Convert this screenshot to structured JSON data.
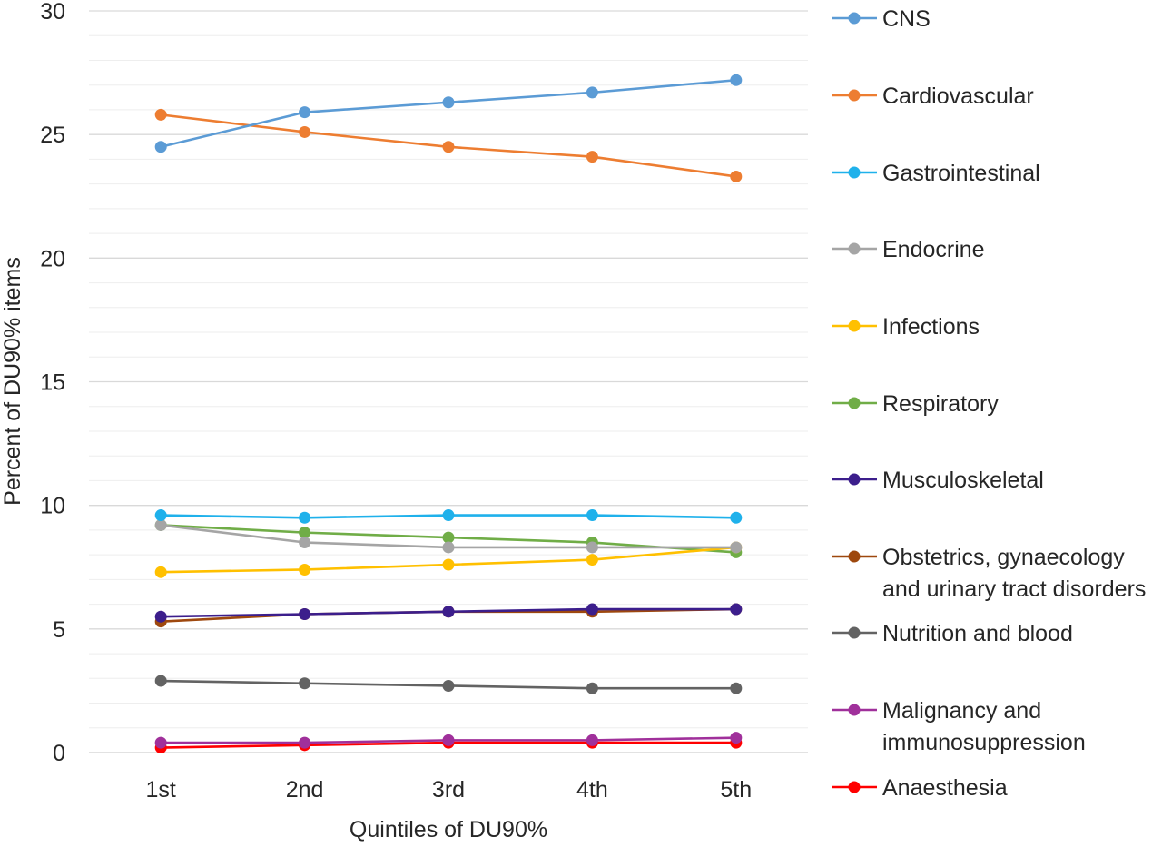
{
  "chart_data": {
    "type": "line",
    "title": "",
    "xlabel": "Quintiles of DU90%",
    "ylabel": "Percent of DU90% items",
    "categories": [
      "1st",
      "2nd",
      "3rd",
      "4th",
      "5th"
    ],
    "ylim": [
      0,
      30
    ],
    "yticks": [
      "0",
      "5",
      "10",
      "15",
      "20",
      "25",
      "30"
    ],
    "grid": "major and minor horizontal",
    "legend_position": "right",
    "series": [
      {
        "name": "CNS",
        "color": "#5b9bd5",
        "values": [
          24.5,
          25.9,
          26.3,
          26.7,
          27.2
        ]
      },
      {
        "name": "Cardiovascular",
        "color": "#ed7d31",
        "values": [
          25.8,
          25.1,
          24.5,
          24.1,
          23.3
        ]
      },
      {
        "name": "Gastrointestinal",
        "color": "#1fb1eb",
        "values": [
          9.6,
          9.5,
          9.6,
          9.6,
          9.5
        ]
      },
      {
        "name": "Endocrine",
        "color": "#a5a5a5",
        "values": [
          9.2,
          8.5,
          8.3,
          8.3,
          8.3
        ]
      },
      {
        "name": "Infections",
        "color": "#ffc000",
        "values": [
          7.3,
          7.4,
          7.6,
          7.8,
          8.3
        ]
      },
      {
        "name": "Respiratory",
        "color": "#70ad47",
        "values": [
          9.2,
          8.9,
          8.7,
          8.5,
          8.1
        ]
      },
      {
        "name": "Musculoskeletal",
        "color": "#3c1e8c",
        "values": [
          5.5,
          5.6,
          5.7,
          5.8,
          5.8
        ]
      },
      {
        "name": "Obstetrics, gynaecology and urinary tract disorders",
        "lines": [
          "Obstetrics, gynaecology",
          "and urinary tract disorders"
        ],
        "color": "#9e480e",
        "values": [
          5.3,
          5.6,
          5.7,
          5.7,
          5.8
        ]
      },
      {
        "name": "Nutrition and blood",
        "color": "#636363",
        "values": [
          2.9,
          2.8,
          2.7,
          2.6,
          2.6
        ]
      },
      {
        "name": "Malignancy and immunosuppression",
        "lines": [
          "Malignancy and",
          "immunosuppression"
        ],
        "color": "#a0309b",
        "values": [
          0.4,
          0.4,
          0.5,
          0.5,
          0.6
        ]
      },
      {
        "name": "Anaesthesia",
        "color": "#ff0000",
        "values": [
          0.2,
          0.3,
          0.4,
          0.4,
          0.4
        ]
      }
    ]
  }
}
